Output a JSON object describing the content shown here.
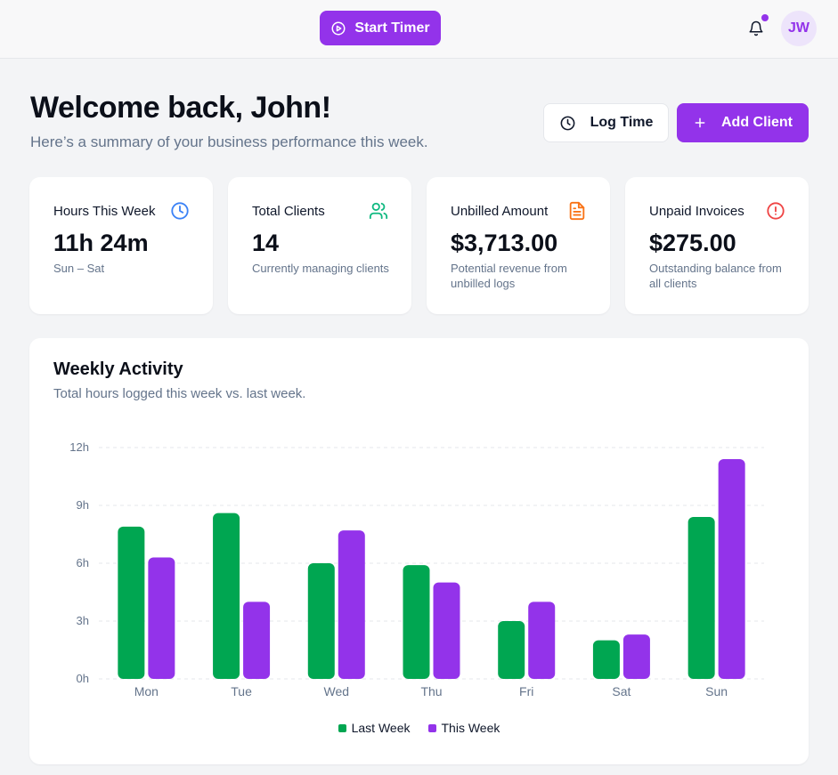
{
  "header": {
    "start_timer_label": "Start Timer",
    "avatar_initials": "JW",
    "notification_dot": true
  },
  "welcome": {
    "title": "Welcome back, John!",
    "subtitle": "Here’s a summary of your business performance this week."
  },
  "actions": {
    "log_time_label": "Log Time",
    "add_client_label": "Add Client"
  },
  "stats": [
    {
      "label": "Hours This Week",
      "value": "11h 24m",
      "desc": "Sun – Sat",
      "icon": "clock-icon",
      "color": "#3b82f6"
    },
    {
      "label": "Total Clients",
      "value": "14",
      "desc": "Currently managing clients",
      "icon": "users-icon",
      "color": "#10b981"
    },
    {
      "label": "Unbilled Amount",
      "value": "$3,713.00",
      "desc": "Potential revenue from unbilled logs",
      "icon": "file-text-icon",
      "color": "#f97316"
    },
    {
      "label": "Unpaid Invoices",
      "value": "$275.00",
      "desc": "Outstanding balance from all clients",
      "icon": "alert-circle-icon",
      "color": "#ef4444"
    }
  ],
  "activity": {
    "title": "Weekly Activity",
    "subtitle": "Total hours logged this week vs. last week."
  },
  "chart_data": {
    "type": "bar",
    "categories": [
      "Mon",
      "Tue",
      "Wed",
      "Thu",
      "Fri",
      "Sat",
      "Sun"
    ],
    "series": [
      {
        "name": "Last Week",
        "color": "#00a651",
        "values": [
          7.9,
          8.6,
          6.0,
          5.9,
          3.0,
          2.0,
          8.4
        ]
      },
      {
        "name": "This Week",
        "color": "#9333ea",
        "values": [
          6.3,
          4.0,
          7.7,
          5.0,
          4.0,
          2.3,
          11.4
        ]
      }
    ],
    "yticks": [
      "0h",
      "3h",
      "6h",
      "9h",
      "12h"
    ],
    "ylim": [
      0,
      12
    ],
    "grid": true,
    "legend": "bottom"
  },
  "colors": {
    "accent": "#9333ea",
    "last_week": "#00a651",
    "this_week": "#9333ea"
  }
}
